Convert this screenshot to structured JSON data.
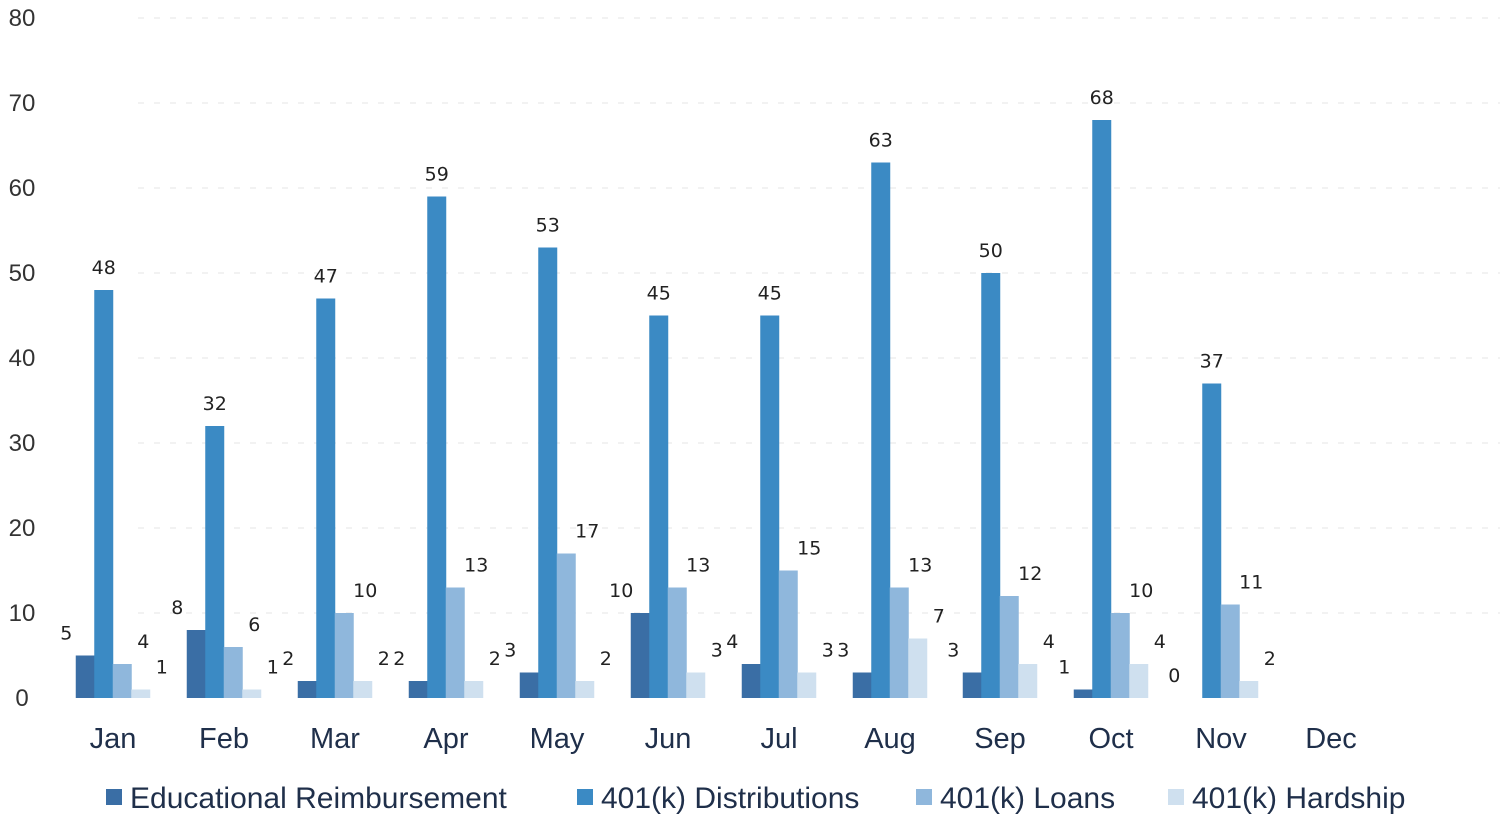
{
  "chart_data": {
    "type": "bar",
    "title": "",
    "xlabel": "",
    "ylabel": "",
    "categories": [
      "Jan",
      "Feb",
      "Mar",
      "Apr",
      "May",
      "Jun",
      "Jul",
      "Aug",
      "Sep",
      "Oct",
      "Nov",
      "Dec"
    ],
    "ylim": [
      0,
      80
    ],
    "yticks": [
      "0",
      "10",
      "20",
      "30",
      "40",
      "50",
      "60",
      "70",
      "80"
    ],
    "grid": true,
    "legend_position": "bottom",
    "series": [
      {
        "name": "Educational Reimbursement",
        "color": "#3a6ea5",
        "values": [
          5,
          8,
          2,
          2,
          3,
          10,
          4,
          3,
          3,
          1,
          0,
          null
        ]
      },
      {
        "name": "401(k) Distributions",
        "color": "#3b8ac4",
        "values": [
          48,
          32,
          47,
          59,
          53,
          45,
          45,
          63,
          50,
          68,
          37,
          null
        ]
      },
      {
        "name": "401(k) Loans",
        "color": "#8fb7dc",
        "values": [
          4,
          6,
          10,
          13,
          17,
          13,
          15,
          13,
          12,
          10,
          11,
          null
        ]
      },
      {
        "name": "401(k) Hardship",
        "color": "#cfe0ef",
        "values": [
          1,
          1,
          2,
          2,
          2,
          3,
          3,
          7,
          4,
          4,
          2,
          null
        ]
      }
    ]
  }
}
